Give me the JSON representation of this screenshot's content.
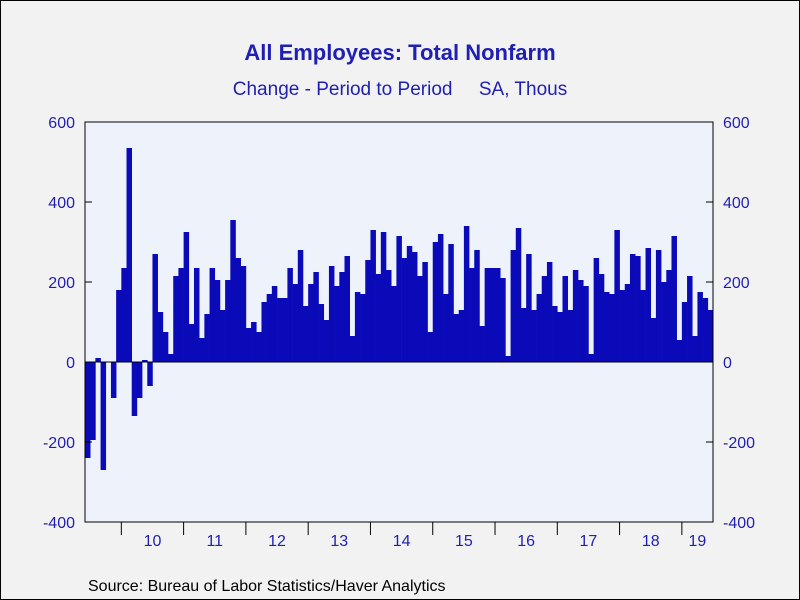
{
  "chart_data": {
    "type": "bar",
    "title": "All Employees: Total Nonfarm",
    "subtitle_left": "Change - Period to Period",
    "subtitle_right": "SA, Thous",
    "source": "Source:  Bureau of Labor Statistics/Haver Analytics",
    "ylim": [
      -400,
      600
    ],
    "yticks": [
      -400,
      -200,
      0,
      200,
      400,
      600
    ],
    "x_start": "2009-06",
    "x_end": "2019-05",
    "year_labels": [
      "10",
      "11",
      "12",
      "13",
      "14",
      "15",
      "16",
      "17",
      "18",
      "19"
    ],
    "grid": false,
    "bar_color": "#0a0ab8",
    "plot_background": "#eef3fb",
    "values": [
      -240,
      -195,
      10,
      -270,
      0,
      -90,
      180,
      235,
      535,
      -135,
      -90,
      5,
      -60,
      270,
      125,
      75,
      20,
      215,
      235,
      325,
      95,
      235,
      60,
      120,
      235,
      205,
      130,
      205,
      355,
      260,
      240,
      85,
      100,
      75,
      150,
      170,
      190,
      160,
      160,
      235,
      195,
      280,
      140,
      195,
      225,
      145,
      105,
      240,
      190,
      225,
      265,
      65,
      175,
      170,
      255,
      330,
      220,
      325,
      230,
      190,
      315,
      260,
      290,
      275,
      215,
      250,
      75,
      300,
      320,
      170,
      295,
      120,
      130,
      340,
      235,
      280,
      90,
      235,
      235,
      235,
      210,
      15,
      280,
      335,
      135,
      270,
      130,
      170,
      215,
      250,
      140,
      125,
      215,
      130,
      230,
      205,
      190,
      20,
      260,
      220,
      175,
      170,
      330,
      180,
      195,
      270,
      265,
      180,
      285,
      110,
      280,
      200,
      230,
      315,
      55,
      150,
      215,
      65,
      175,
      160,
      130
    ]
  }
}
